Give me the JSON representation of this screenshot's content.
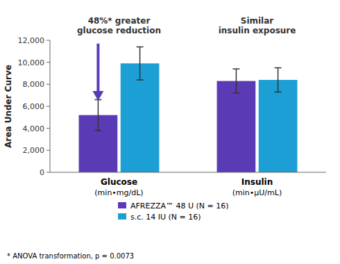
{
  "chart_data": {
    "type": "bar",
    "ylabel": "Area Under Curve",
    "categories": [
      "Glucose",
      "Insulin"
    ],
    "category_sublabels": [
      "(min•mg/dL)",
      "(min•μU/mL)"
    ],
    "series": [
      {
        "name": "AFREZZA™ 48 U (N = 16)",
        "color": "#5B3BB5",
        "values": [
          5200,
          8300
        ],
        "errors": [
          1400,
          1100
        ],
        "arrow": {
          "category": "Glucose",
          "from": 11700,
          "to": 6500
        }
      },
      {
        "name": "s.c. 14 IU (N = 16)",
        "color": "#1B9FD4",
        "values": [
          9900,
          8400
        ],
        "errors": [
          1500,
          1100
        ]
      }
    ],
    "annotations": [
      {
        "text": "48%* greater\nglucose reduction",
        "category": "Glucose"
      },
      {
        "text": "Similar\ninsulin exposure",
        "category": "Insulin"
      }
    ],
    "ylim": [
      0,
      12000
    ],
    "yticks": [
      0,
      {
        "value": 2000,
        "label": "2,000"
      },
      {
        "value": 4000,
        "label": "4,000"
      },
      {
        "value": 6000,
        "label": "6,000"
      },
      {
        "value": 8000,
        "label": "8,000"
      },
      {
        "value": 10000,
        "label": "10,000"
      },
      {
        "value": 12000,
        "label": "12,000"
      }
    ],
    "grid": false,
    "legend": "bottom",
    "footnote": "* ANOVA transformation, p  = 0.0073"
  }
}
